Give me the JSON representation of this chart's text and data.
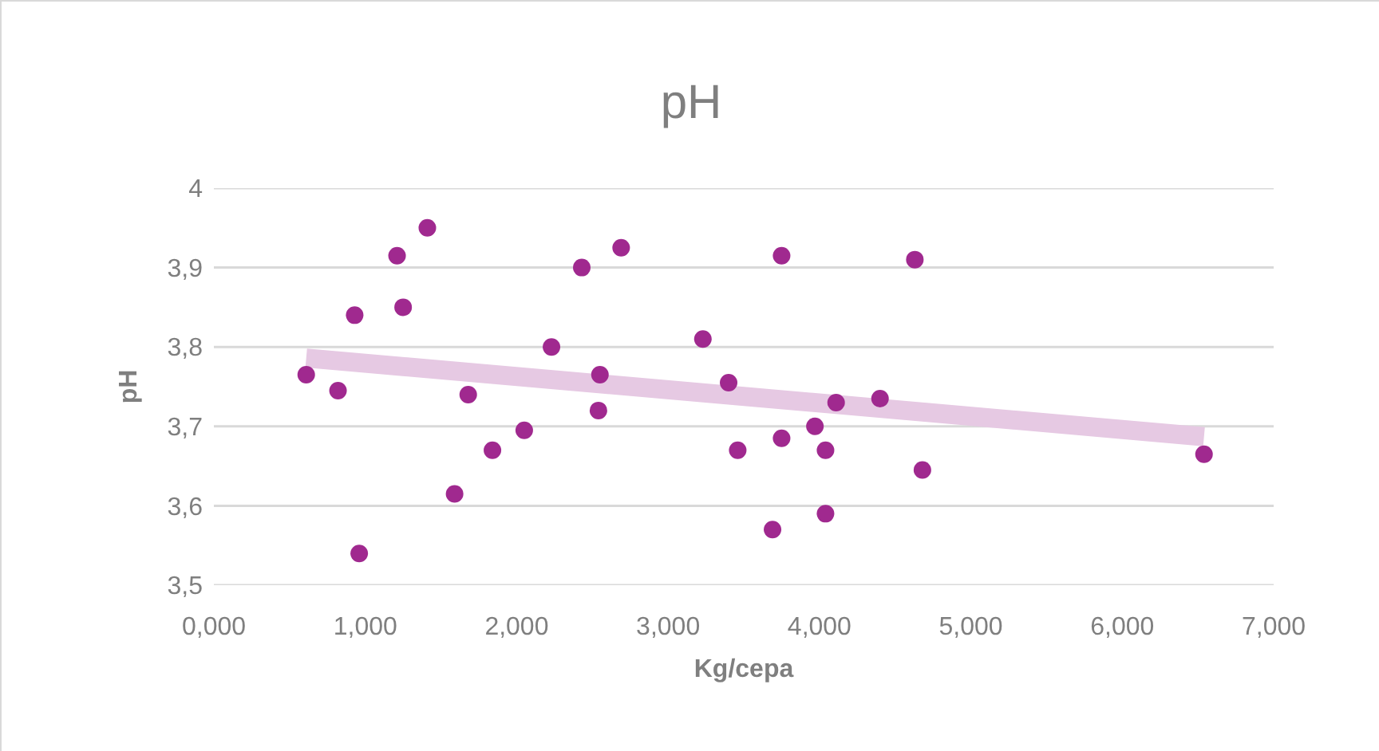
{
  "chart_data": {
    "type": "scatter",
    "title": "pH",
    "xlabel": "Kg/cepa",
    "ylabel": "pH",
    "series": [
      {
        "marker": "circle",
        "color": "#a0298f",
        "x": [
          0.61,
          0.82,
          0.93,
          0.96,
          1.21,
          1.25,
          1.41,
          1.59,
          1.68,
          1.84,
          2.05,
          2.23,
          2.43,
          2.54,
          2.55,
          2.69,
          3.23,
          3.4,
          3.46,
          3.69,
          3.75,
          3.75,
          3.97,
          4.04,
          4.04,
          4.11,
          4.4,
          4.63,
          4.68,
          6.54
        ],
        "values": [
          3.765,
          3.745,
          3.84,
          3.54,
          3.915,
          3.85,
          3.95,
          3.615,
          3.74,
          3.67,
          3.695,
          3.8,
          3.9,
          3.72,
          3.765,
          3.925,
          3.81,
          3.755,
          3.67,
          3.57,
          3.915,
          3.685,
          3.7,
          3.67,
          3.59,
          3.73,
          3.735,
          3.91,
          3.645,
          3.665
        ]
      },
      {
        "type": "line",
        "marker": "none",
        "color": "#e6c9e3",
        "x": [
          0.61,
          6.54
        ],
        "values": [
          3.786,
          3.687
        ]
      }
    ],
    "xlim": [
      0,
      7
    ],
    "xticks": [
      {
        "value": 0,
        "label": "0,000"
      },
      {
        "value": 1,
        "label": "1,000"
      },
      {
        "value": 2,
        "label": "2,000"
      },
      {
        "value": 3,
        "label": "3,000"
      },
      {
        "value": 4,
        "label": "4,000"
      },
      {
        "value": 5,
        "label": "5,000"
      },
      {
        "value": 6,
        "label": "6,000"
      },
      {
        "value": 7,
        "label": "7,000"
      }
    ],
    "ylim": [
      3.5,
      4
    ],
    "yticks": [
      {
        "value": 3.5,
        "label": "3,5"
      },
      {
        "value": 3.6,
        "label": "3,6"
      },
      {
        "value": 3.7,
        "label": "3,7"
      },
      {
        "value": 3.8,
        "label": "3,8"
      },
      {
        "value": 3.9,
        "label": "3,9"
      },
      4
    ],
    "grid": "y",
    "line_style": "solid"
  }
}
